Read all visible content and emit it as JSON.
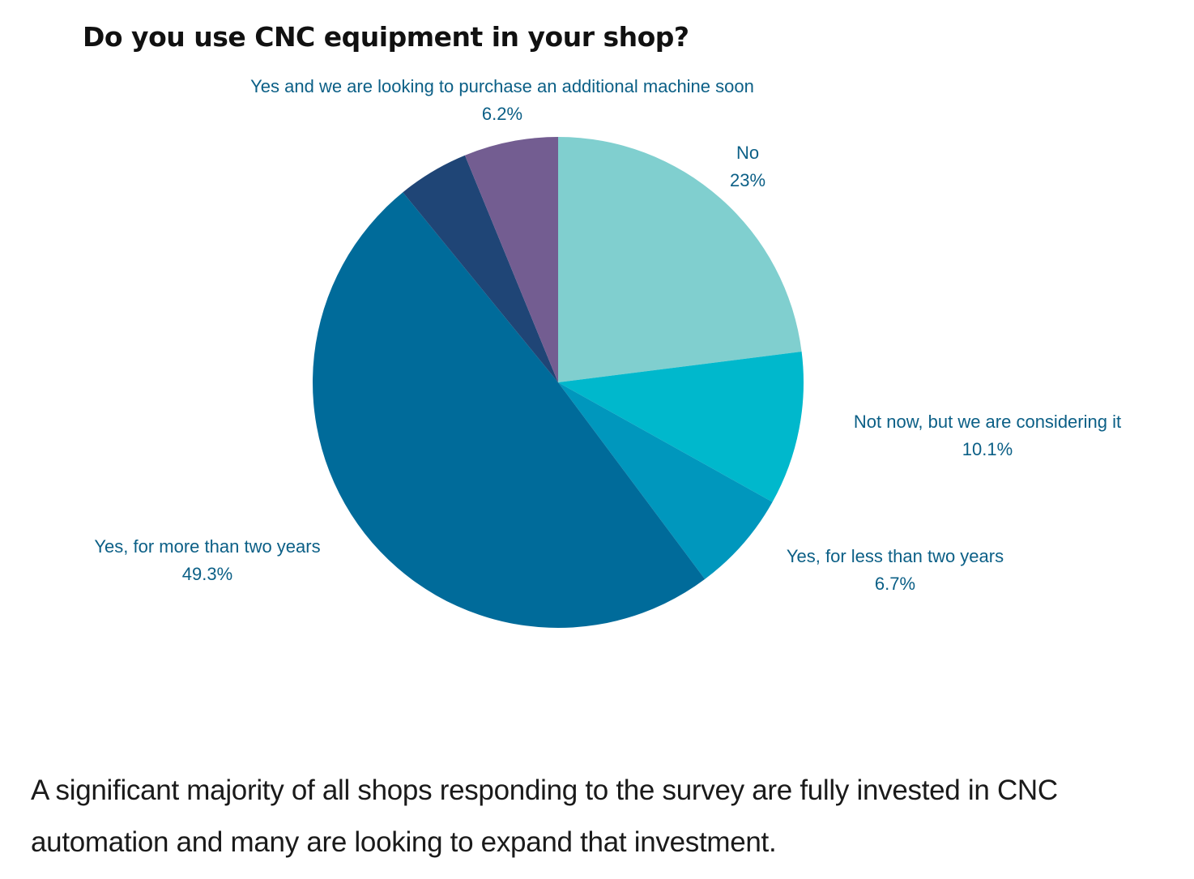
{
  "chart_data": {
    "type": "pie",
    "title": "Do you use CNC equipment in your shop?",
    "start_angle_deg": 0,
    "direction": "clockwise",
    "slices": [
      {
        "label": "No",
        "value": 23,
        "value_label": "23%",
        "color": "#80cfcf"
      },
      {
        "label": "Not now, but we are considering it",
        "value": 10.1,
        "value_label": "10.1%",
        "color": "#00b8cc"
      },
      {
        "label": "Yes, for less than two years",
        "value": 6.7,
        "value_label": "6.7%",
        "color": "#0097bd"
      },
      {
        "label": "Yes, for more than two years",
        "value": 49.3,
        "value_label": "49.3%",
        "color": "#006b9a"
      },
      {
        "label": "",
        "value": 4.7,
        "value_label": "",
        "color": "#1f4576"
      },
      {
        "label": "Yes and we are looking to purchase an additional machine soon",
        "value": 6.2,
        "value_label": "6.2%",
        "color": "#735d91"
      }
    ]
  },
  "caption": "A significant majority of all shops responding to the survey are fully invested in CNC automation and many are looking to expand that investment."
}
